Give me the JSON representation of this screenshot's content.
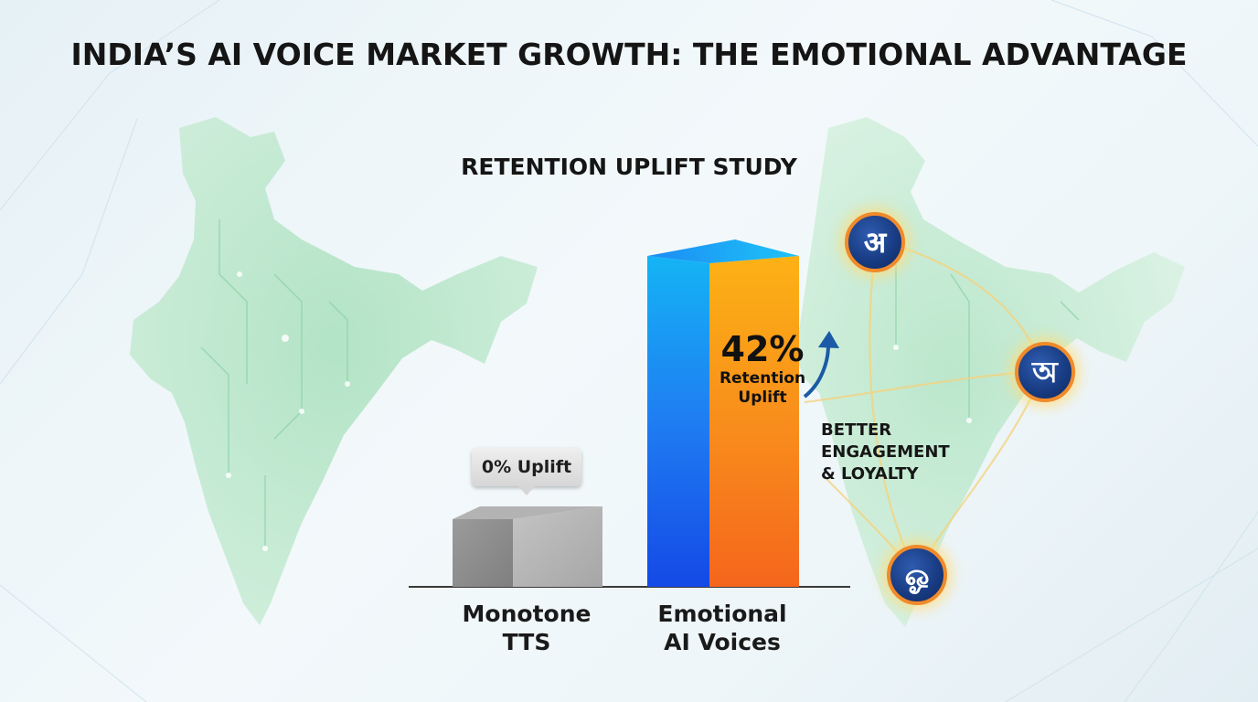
{
  "title": "INDIA’S AI VOICE MARKET GROWTH: THE EMOTIONAL ADVANTAGE",
  "chart_data": {
    "type": "bar",
    "title": "RETENTION UPLIFT STUDY",
    "categories": [
      "Monotone\nTTS",
      "Emotional\nAI Voices"
    ],
    "values": [
      0,
      42
    ],
    "unit": "%",
    "data_labels": [
      "0% Uplift",
      "42%"
    ],
    "data_label_sub": "Retention\nUplift",
    "annotation": "BETTER\nENGAGEMENT\n& LOYALTY",
    "ylim": [
      0,
      42
    ],
    "bar_colors": [
      "#9a9a9a",
      "#f07d18"
    ],
    "accent_colors": {
      "blue": "#1b6cf2",
      "orange": "#f79a1c"
    }
  },
  "badges": [
    {
      "glyph": "अ",
      "icon": "hindi-letter-a-icon"
    },
    {
      "glyph": "অ",
      "icon": "bengali-letter-a-icon"
    },
    {
      "glyph": "ஓ",
      "icon": "tamil-letter-o-icon"
    }
  ]
}
